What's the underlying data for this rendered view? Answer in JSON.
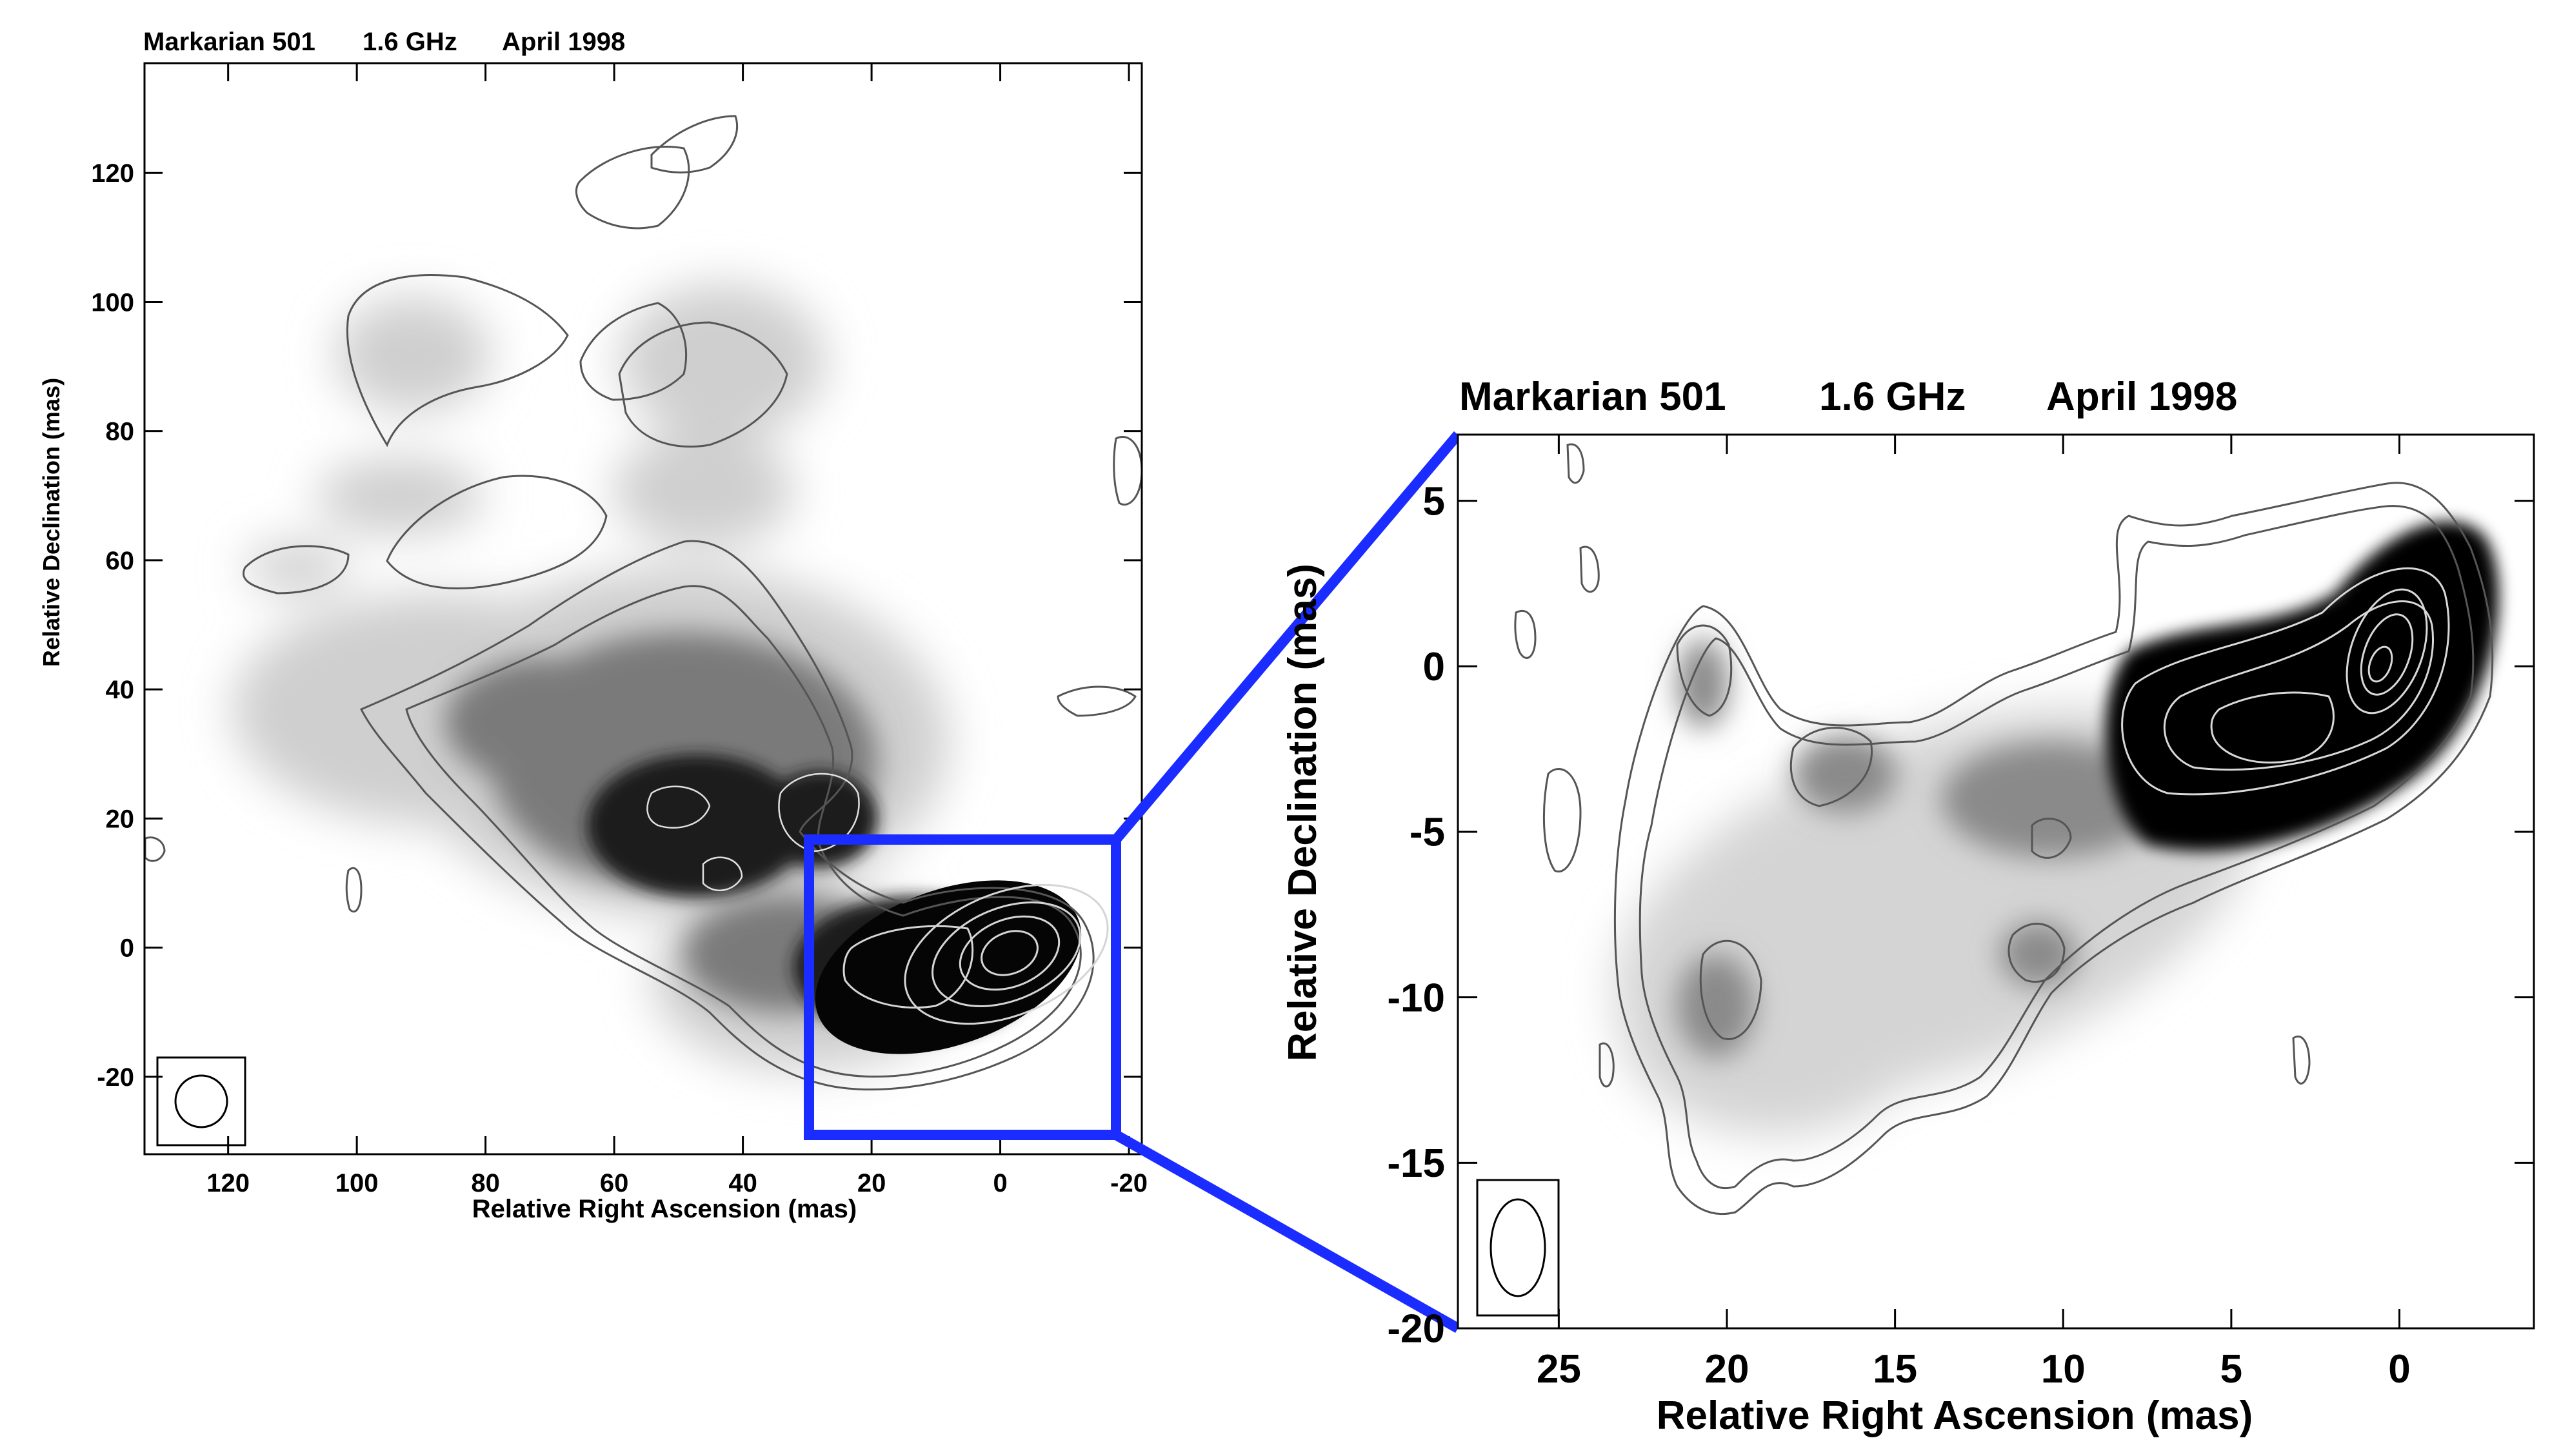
{
  "panels": [
    {
      "id": "left",
      "title_source": "Markarian 501",
      "title_frequency": "1.6 GHz",
      "title_date": "April 1998",
      "xlabel": "Relative Right Ascension (mas)",
      "ylabel": "Relative Declination (mas)",
      "xticks": [
        "120",
        "100",
        "80",
        "60",
        "40",
        "20",
        "0",
        "-20"
      ],
      "yticks": [
        "120",
        "100",
        "80",
        "60",
        "40",
        "20",
        "0",
        "-20"
      ],
      "xrange_mas": [
        133,
        -22
      ],
      "yrange_mas": [
        -32,
        137
      ]
    },
    {
      "id": "right",
      "title_source": "Markarian 501",
      "title_frequency": "1.6 GHz",
      "title_date": "April 1998",
      "xlabel": "Relative Right Ascension (mas)",
      "ylabel": "Relative Declination (mas)",
      "xticks": [
        "25",
        "20",
        "15",
        "10",
        "5",
        "0"
      ],
      "yticks": [
        "5",
        "0",
        "-5",
        "-10",
        "-15",
        "-20"
      ],
      "xrange_mas": [
        28,
        -4
      ],
      "yrange_mas": [
        -20,
        7
      ]
    }
  ],
  "colors": {
    "zoom_box": "#1a2cff",
    "contour": "#555555",
    "inner_contour": "#d8d8d8",
    "frame": "#000000"
  }
}
